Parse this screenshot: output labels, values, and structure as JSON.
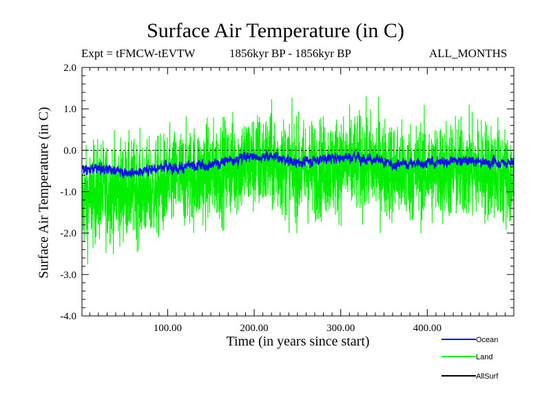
{
  "chart_data": {
    "type": "line",
    "title": "Surface Air Temperature (in C)",
    "subtitle_left": "Expt = tFMCW-tEVTW",
    "subtitle_center": "1856kyr BP - 1856kyr BP",
    "subtitle_right": "ALL_MONTHS",
    "xlabel": "Time (in years since start)",
    "ylabel": "Surface Air Temperature (in C)",
    "xlim": [
      1,
      500
    ],
    "ylim": [
      -4.0,
      2.0
    ],
    "x_ticks": [
      100,
      200,
      300,
      400
    ],
    "x_tick_labels": [
      "100.00",
      "200.00",
      "300.00",
      "400.00"
    ],
    "y_ticks": [
      -4.0,
      -3.0,
      -2.0,
      -1.0,
      0.0,
      1.0,
      2.0
    ],
    "y_tick_labels": [
      "-4.0",
      "-3.0",
      "-2.0",
      "-1.0",
      "0.0",
      "1.0",
      "2.0"
    ],
    "zero_line": 0.0,
    "series": [
      {
        "name": "Ocean",
        "color": "#1010ee",
        "description": "ocean mean, roughly -0.5 early rising toward about -0.2, small variability",
        "anchors": [
          [
            1,
            -0.45
          ],
          [
            30,
            -0.45
          ],
          [
            60,
            -0.55
          ],
          [
            90,
            -0.4
          ],
          [
            130,
            -0.4
          ],
          [
            160,
            -0.3
          ],
          [
            190,
            -0.15
          ],
          [
            220,
            -0.15
          ],
          [
            250,
            -0.3
          ],
          [
            280,
            -0.2
          ],
          [
            320,
            -0.15
          ],
          [
            360,
            -0.35
          ],
          [
            400,
            -0.3
          ],
          [
            440,
            -0.25
          ],
          [
            470,
            -0.3
          ],
          [
            500,
            -0.3
          ]
        ],
        "noise": 0.13
      },
      {
        "name": "Land",
        "color": "#00ee00",
        "description": "land, strongly varying; about -1.0 early, around -0.4 after year 150",
        "anchors": [
          [
            1,
            -1.3
          ],
          [
            20,
            -1.0
          ],
          [
            50,
            -0.95
          ],
          [
            80,
            -1.0
          ],
          [
            110,
            -0.7
          ],
          [
            150,
            -0.55
          ],
          [
            190,
            -0.3
          ],
          [
            220,
            -0.3
          ],
          [
            250,
            -0.5
          ],
          [
            290,
            -0.4
          ],
          [
            330,
            -0.3
          ],
          [
            370,
            -0.55
          ],
          [
            410,
            -0.5
          ],
          [
            450,
            -0.45
          ],
          [
            480,
            -0.5
          ],
          [
            500,
            -0.8
          ]
        ],
        "noise": 0.6,
        "min_value": -2.9,
        "max_value": 1.3
      },
      {
        "name": "AllSurf",
        "color": "#000000",
        "description": "drawn underneath ocean series, not distinguishable",
        "visible": false
      }
    ],
    "legend_position": "bottom-right",
    "legend": [
      "Ocean",
      "Land",
      "AllSurf"
    ],
    "grid": false
  }
}
